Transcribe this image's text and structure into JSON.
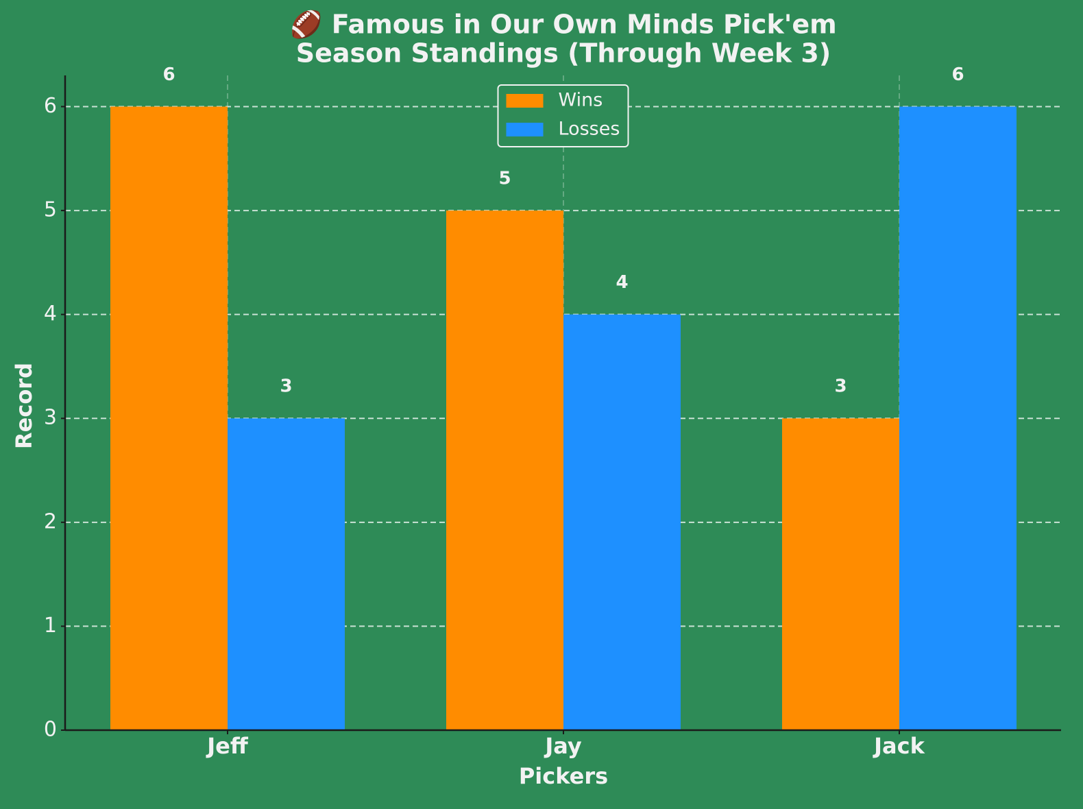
{
  "chart_data": {
    "type": "bar",
    "title": "🏈 Famous in Our Own Minds Pick'em",
    "subtitle": "Season Standings (Through Week 3)",
    "x_label": "Pickers",
    "y_label": "Record",
    "categories": [
      "Jeff",
      "Jay",
      "Jack"
    ],
    "series": [
      {
        "name": "Wins",
        "color": "#ff8c00",
        "values": [
          6,
          5,
          3
        ]
      },
      {
        "name": "Losses",
        "color": "#1e90ff",
        "values": [
          3,
          4,
          6
        ]
      }
    ],
    "ylim": [
      0,
      6.3
    ],
    "yticks": [
      0,
      1,
      2,
      3,
      4,
      5,
      6
    ],
    "grid": true,
    "legend": "upper center"
  }
}
